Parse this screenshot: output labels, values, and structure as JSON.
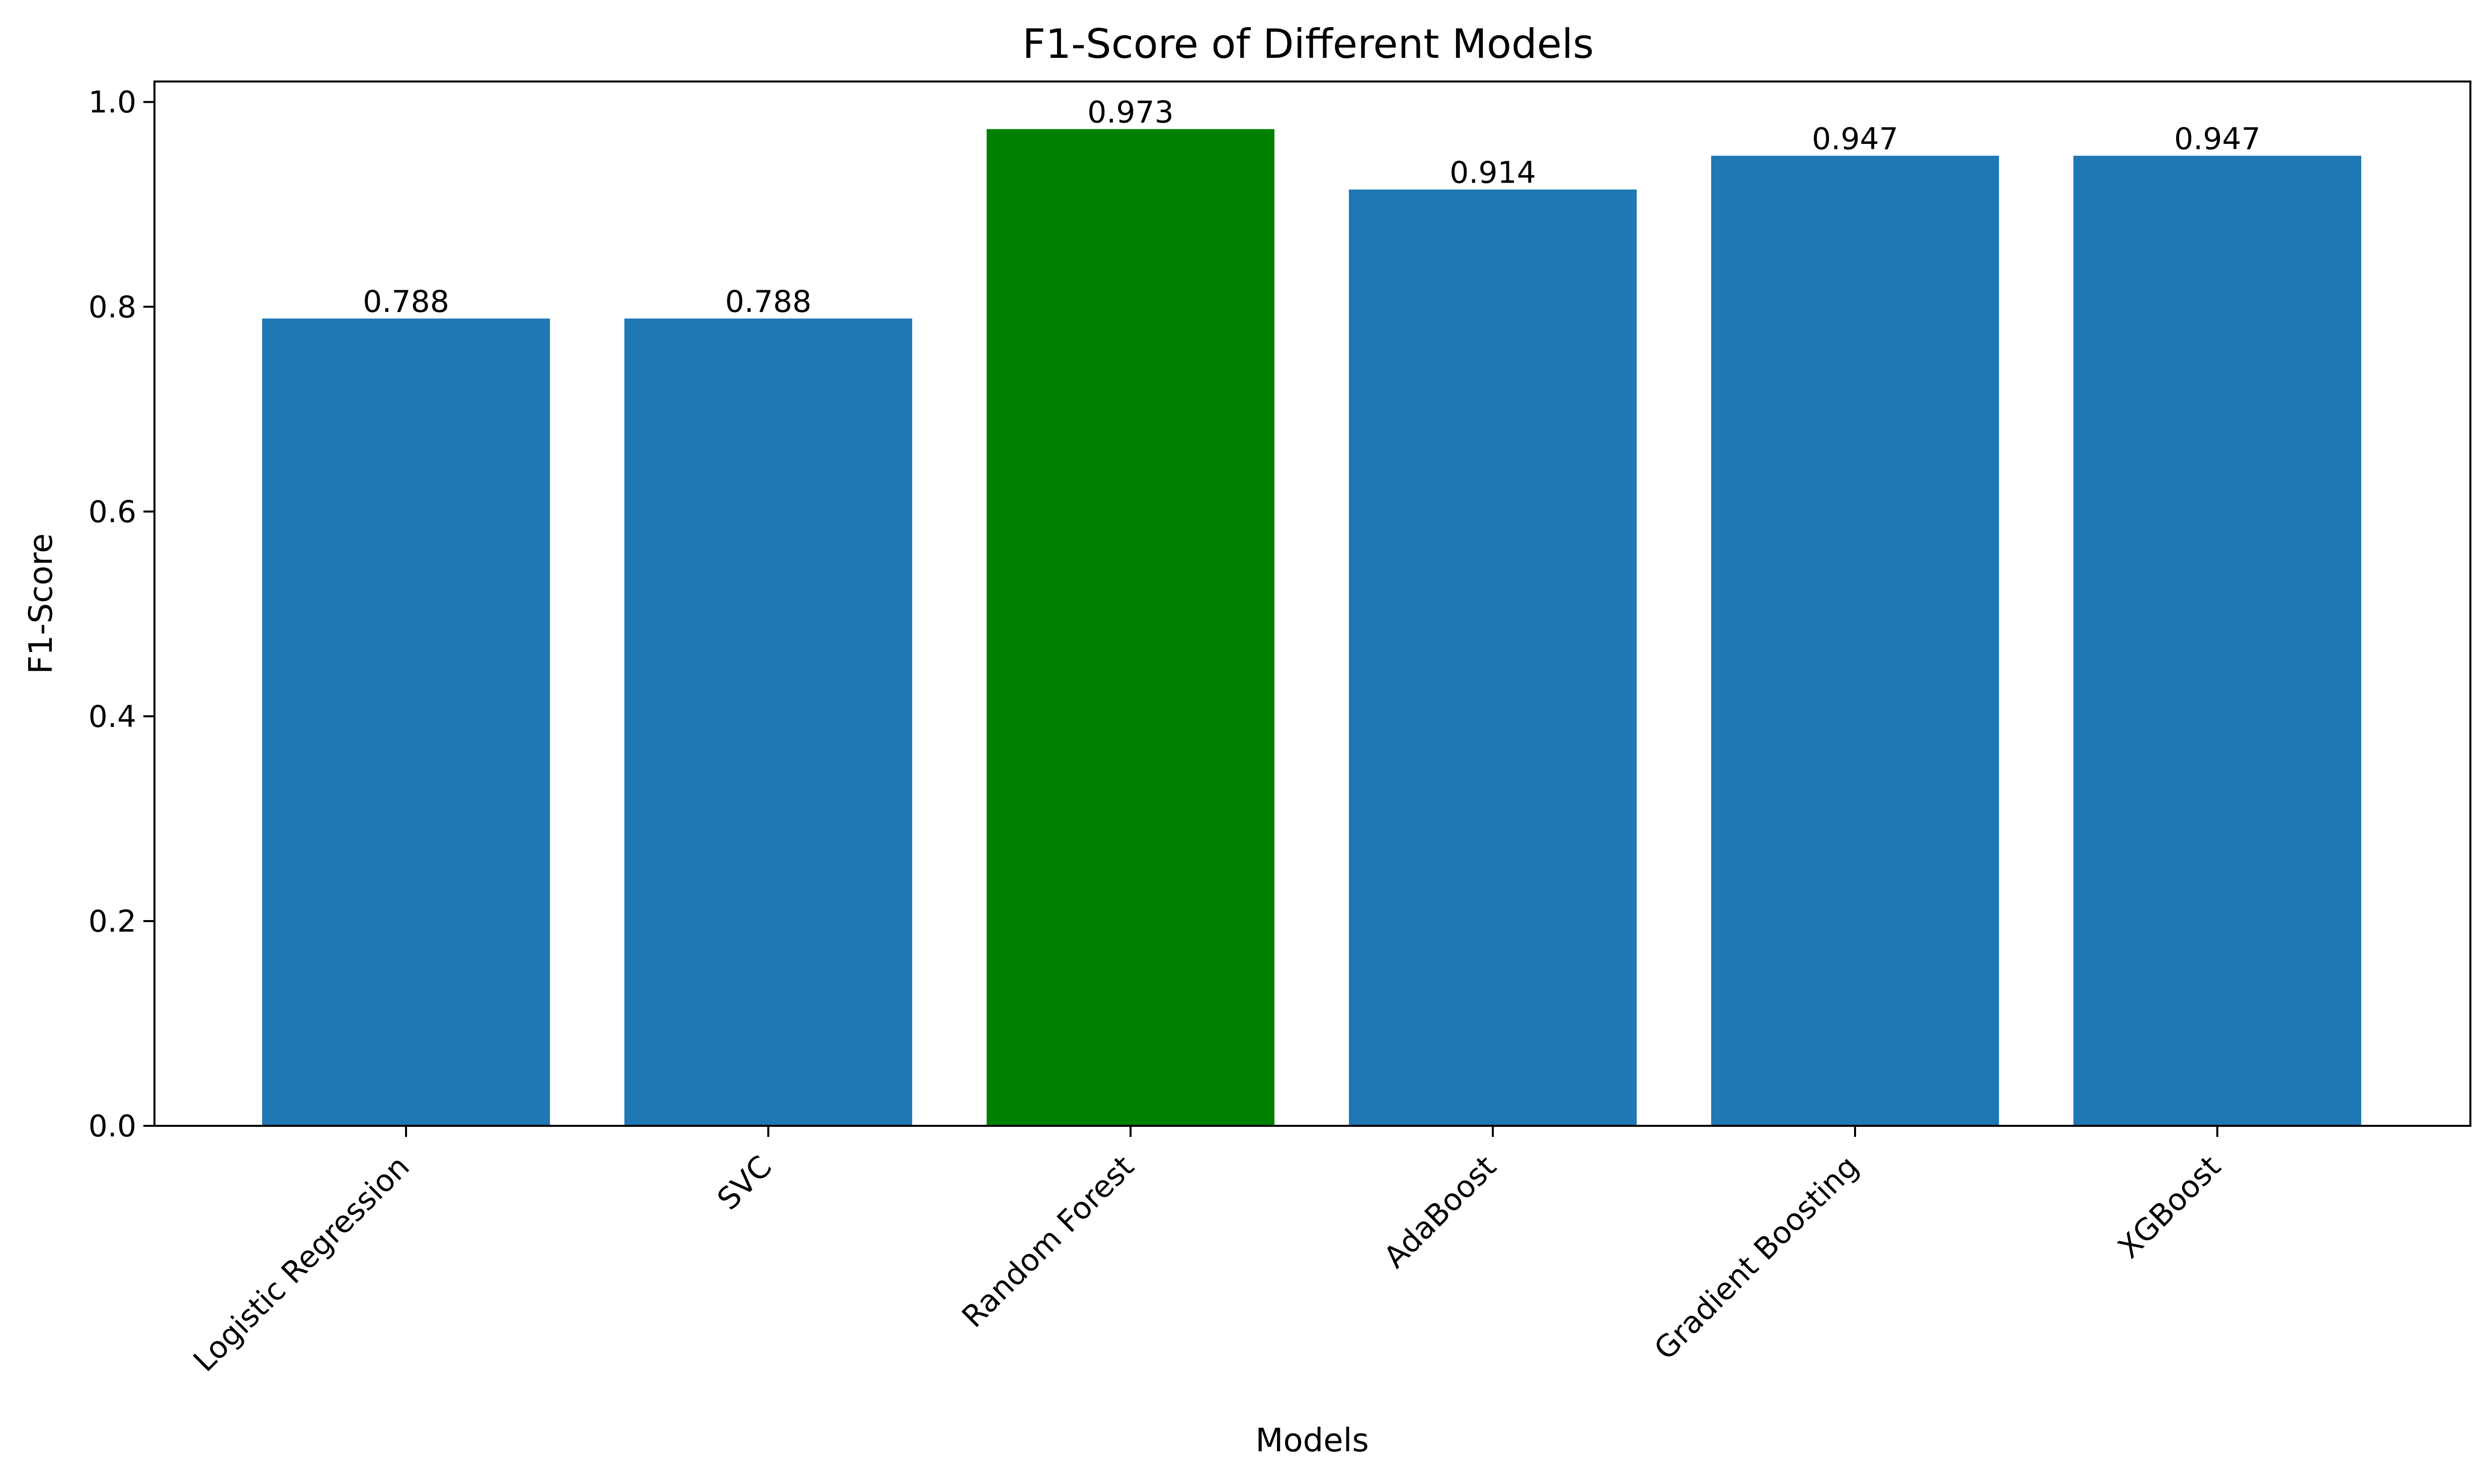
{
  "chart_data": {
    "type": "bar",
    "title": "F1-Score of Different Models",
    "xlabel": "Models",
    "ylabel": "F1-Score",
    "categories": [
      "Logistic Regression",
      "SVC",
      "Random Forest",
      "AdaBoost",
      "Gradient Boosting",
      "XGBoost"
    ],
    "values": [
      0.788,
      0.788,
      0.973,
      0.914,
      0.947,
      0.947
    ],
    "data_labels": [
      "0.788",
      "0.788",
      "0.973",
      "0.914",
      "0.947",
      "0.947"
    ],
    "bar_colors": [
      "#1f77b4",
      "#1f77b4",
      "#008000",
      "#1f77b4",
      "#1f77b4",
      "#1f77b4"
    ],
    "highlighted_category": "Random Forest",
    "ylim": [
      0,
      1.02
    ],
    "yticks": [
      0.0,
      0.2,
      0.4,
      0.6,
      0.8,
      1.0
    ],
    "ytick_labels": [
      "0.0",
      "0.2",
      "0.4",
      "0.6",
      "0.8",
      "1.0"
    ],
    "xtick_rotation_deg": 45,
    "grid": false,
    "legend": "none"
  }
}
